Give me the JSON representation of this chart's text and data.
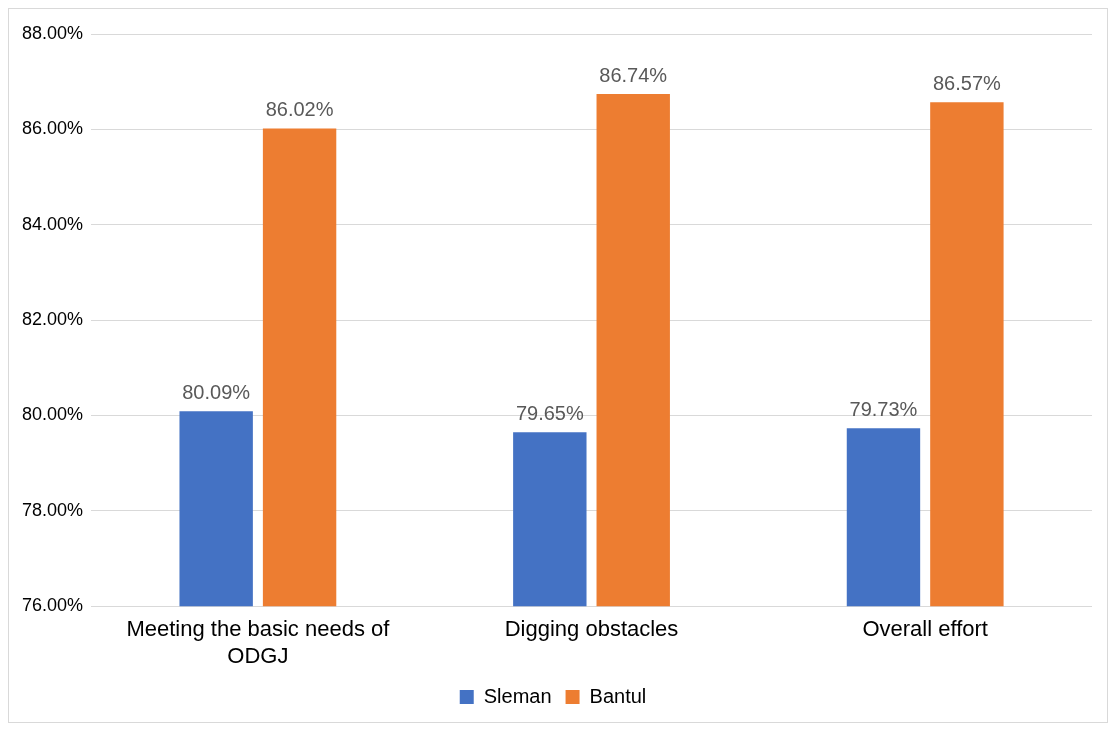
{
  "chart_data": {
    "type": "bar",
    "categories": [
      "Meeting the basic needs of ODGJ",
      "Digging obstacles",
      "Overall effort"
    ],
    "series": [
      {
        "name": "Sleman",
        "color": "#4472c4",
        "values": [
          80.09,
          79.65,
          79.73
        ],
        "value_labels": [
          "80.09%",
          "79.65%",
          "79.73%"
        ]
      },
      {
        "name": "Bantul",
        "color": "#ed7d31",
        "values": [
          86.02,
          86.74,
          86.57
        ],
        "value_labels": [
          "86.02%",
          "86.74%",
          "86.57%"
        ]
      }
    ],
    "ylim": [
      76,
      88
    ],
    "yticks": [
      {
        "value": 76,
        "label": "76.00%"
      },
      {
        "value": 78,
        "label": "78.00%"
      },
      {
        "value": 80,
        "label": "80.00%"
      },
      {
        "value": 82,
        "label": "82.00%"
      },
      {
        "value": 84,
        "label": "84.00%"
      },
      {
        "value": 86,
        "label": "86.00%"
      },
      {
        "value": 88,
        "label": "88.00%"
      }
    ],
    "grid": "y",
    "legend": "bottom"
  }
}
